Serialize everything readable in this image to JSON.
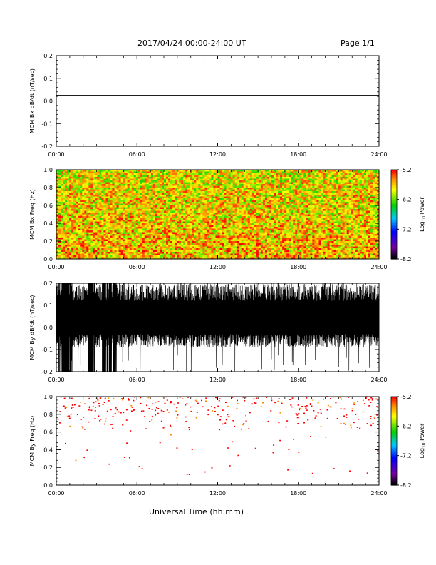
{
  "header": {
    "date_range": "2017/04/24  00:00-24:00 UT",
    "page": "Page 1/1"
  },
  "x_axis": {
    "label": "Universal Time (hh:mm)",
    "ticks": [
      "00:00",
      "06:00",
      "12:00",
      "18:00",
      "24:00"
    ],
    "range_hours": [
      0,
      24
    ]
  },
  "colors": {
    "line": "#000000",
    "background": "#ffffff"
  },
  "chart_data": [
    {
      "type": "line",
      "ylabel": "MCM Bx dB/dt (nT/sec)",
      "ylim": [
        -0.2,
        0.2
      ],
      "yticks": [
        "0.2",
        "0.1",
        "0.0",
        "-0.1",
        "-0.2"
      ],
      "series": [
        {
          "x": [
            0,
            24
          ],
          "y": [
            0.025,
            0.025
          ]
        }
      ]
    },
    {
      "type": "heatmap",
      "ylabel": "MCM Bx Freq (Hz)",
      "ylim": [
        0,
        1.0
      ],
      "yticks": [
        "1.0",
        "0.8",
        "0.6",
        "0.4",
        "0.2",
        "0.0"
      ],
      "fill": "dense",
      "dominant_power_range": [
        -5.2,
        -5.9
      ],
      "colorbar": {
        "label": "Log10 Power",
        "ticks": [
          "-5.2",
          "-6.2",
          "-7.2",
          "-8.2"
        ],
        "range": [
          -8.2,
          -5.2
        ]
      }
    },
    {
      "type": "area",
      "ylabel": "MCM By dB/dt (nT/sec)",
      "ylim": [
        -0.2,
        0.2
      ],
      "yticks": [
        "0.2",
        "0.1",
        "0.0",
        "-0.1",
        "-0.2"
      ],
      "baseline": 0.05,
      "typical_envelope": [
        -0.05,
        0.15
      ],
      "saturated_intervals_hours": [
        [
          0.1,
          1.2
        ],
        [
          2.4,
          2.9
        ],
        [
          3.4,
          4.5
        ]
      ]
    },
    {
      "type": "heatmap",
      "ylabel": "MCM By Freq (Hz)",
      "ylim": [
        0,
        1.0
      ],
      "yticks": [
        "1.0",
        "0.8",
        "0.6",
        "0.4",
        "0.2",
        "0.0"
      ],
      "fill": "sparse",
      "dominant_freq_range_hz": [
        0.6,
        1.0
      ],
      "colorbar": {
        "label": "Log10 Power",
        "ticks": [
          "-5.2",
          "-6.2",
          "-7.2",
          "-8.2"
        ],
        "range": [
          -8.2,
          -5.2
        ]
      }
    }
  ]
}
